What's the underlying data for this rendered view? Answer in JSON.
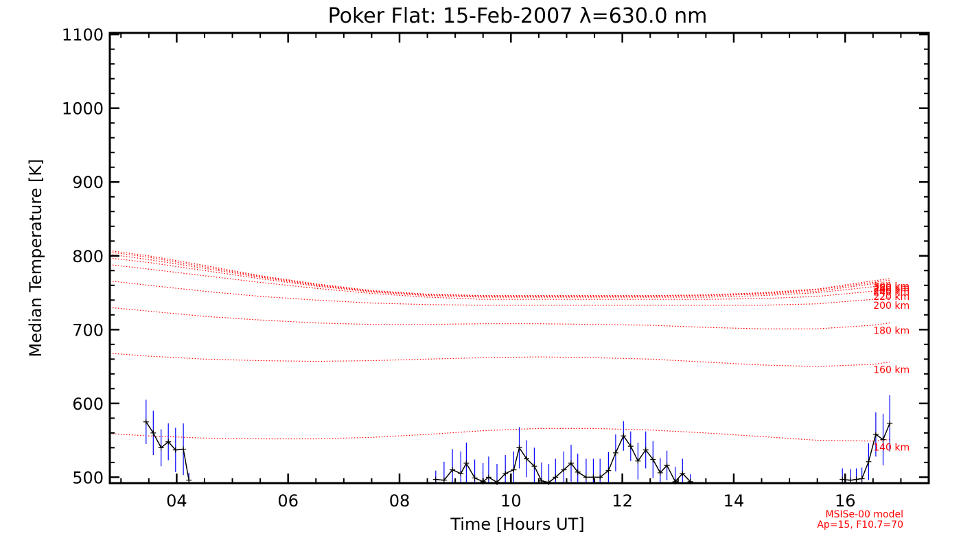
{
  "chart_data": {
    "type": "line",
    "title": "Poker Flat: 15-Feb-2007 λ=630.0 nm",
    "xlabel": "Time [Hours UT]",
    "ylabel": "Median Temperature [K]",
    "xlim": [
      2.8,
      17.5
    ],
    "ylim": [
      492,
      1102
    ],
    "x_ticks": [
      4,
      6,
      8,
      10,
      12,
      14,
      16
    ],
    "x_tick_labels": [
      "04",
      "06",
      "08",
      "10",
      "12",
      "14",
      "16"
    ],
    "y_ticks": [
      500,
      600,
      700,
      800,
      900,
      1000,
      1100
    ],
    "y_tick_labels": [
      "500",
      "600",
      "700",
      "800",
      "900",
      "1000",
      "1100"
    ],
    "grid": false,
    "colors": {
      "data": "#000000",
      "errorbar": "#0000ff",
      "model": "#ff0000"
    },
    "measured": {
      "name": "Median temperature",
      "x": [
        3.45,
        3.58,
        3.72,
        3.85,
        3.98,
        4.12,
        4.22,
        8.65,
        8.8,
        8.95,
        9.1,
        9.2,
        9.35,
        9.5,
        9.6,
        9.75,
        9.9,
        10.05,
        10.15,
        10.28,
        10.42,
        10.55,
        10.68,
        10.8,
        10.95,
        11.08,
        11.2,
        11.35,
        11.48,
        11.6,
        11.75,
        11.88,
        12.02,
        12.15,
        12.28,
        12.42,
        12.55,
        12.68,
        12.8,
        12.95,
        13.08,
        13.22,
        15.95,
        16.1,
        16.2,
        16.3,
        16.42,
        16.55,
        16.68,
        16.8
      ],
      "y": [
        575,
        560,
        540,
        548,
        537,
        538,
        496,
        497,
        496,
        510,
        505,
        519,
        499,
        494,
        500,
        493,
        505,
        510,
        540,
        525,
        515,
        495,
        493,
        500,
        510,
        519,
        507,
        500,
        500,
        500,
        509,
        533,
        556,
        542,
        522,
        537,
        524,
        506,
        516,
        494,
        505,
        494,
        497,
        496,
        497,
        498,
        521,
        558,
        551,
        573
      ],
      "err": [
        30,
        30,
        25,
        25,
        30,
        35,
        10,
        12,
        25,
        28,
        30,
        28,
        25,
        25,
        28,
        25,
        25,
        25,
        28,
        25,
        25,
        25,
        25,
        25,
        25,
        25,
        25,
        25,
        25,
        25,
        25,
        25,
        20,
        20,
        25,
        25,
        25,
        20,
        20,
        20,
        20,
        10,
        15,
        15,
        15,
        15,
        25,
        30,
        35,
        38
      ]
    },
    "model": {
      "label_line1": "MSISe-00 model",
      "label_line2": "Ap=15, F10.7=70",
      "x": [
        2.8,
        3.5,
        4.5,
        5.5,
        6.5,
        7.5,
        8.5,
        9.5,
        10.5,
        11.5,
        12.5,
        13.5,
        14.5,
        15.5,
        16.5,
        16.8
      ],
      "series": [
        {
          "name": "140 km",
          "values": [
            559,
            556,
            553,
            552,
            552,
            554,
            558,
            563,
            566,
            566,
            564,
            560,
            555,
            550,
            549,
            551
          ]
        },
        {
          "name": "160 km",
          "values": [
            668,
            664,
            660,
            658,
            657,
            658,
            660,
            662,
            663,
            662,
            660,
            656,
            652,
            650,
            653,
            656
          ]
        },
        {
          "name": "180 km",
          "values": [
            730,
            725,
            718,
            713,
            709,
            707,
            707,
            708,
            708,
            707,
            706,
            703,
            701,
            701,
            706,
            709
          ]
        },
        {
          "name": "200 km",
          "values": [
            766,
            760,
            752,
            745,
            740,
            736,
            734,
            733,
            733,
            733,
            733,
            733,
            733,
            735,
            741,
            743
          ]
        },
        {
          "name": "220 km",
          "values": [
            788,
            782,
            773,
            764,
            756,
            749,
            744,
            741,
            741,
            741,
            741,
            741,
            742,
            745,
            752,
            755
          ]
        },
        {
          "name": "240 km",
          "values": [
            797,
            791,
            780,
            769,
            759,
            751,
            746,
            744,
            744,
            744,
            744,
            744,
            746,
            750,
            758,
            761
          ]
        },
        {
          "name": "260 km",
          "values": [
            802,
            795,
            783,
            771,
            760,
            752,
            747,
            745,
            745,
            745,
            745,
            746,
            748,
            752,
            762,
            764
          ]
        },
        {
          "name": "280 km",
          "values": [
            805,
            798,
            785,
            772,
            761,
            752,
            748,
            746,
            746,
            746,
            746,
            747,
            749,
            754,
            764,
            767
          ]
        },
        {
          "name": "300 km",
          "values": [
            807,
            800,
            787,
            773,
            762,
            753,
            748,
            746,
            746,
            746,
            746,
            747,
            750,
            755,
            766,
            769
          ]
        }
      ]
    }
  }
}
